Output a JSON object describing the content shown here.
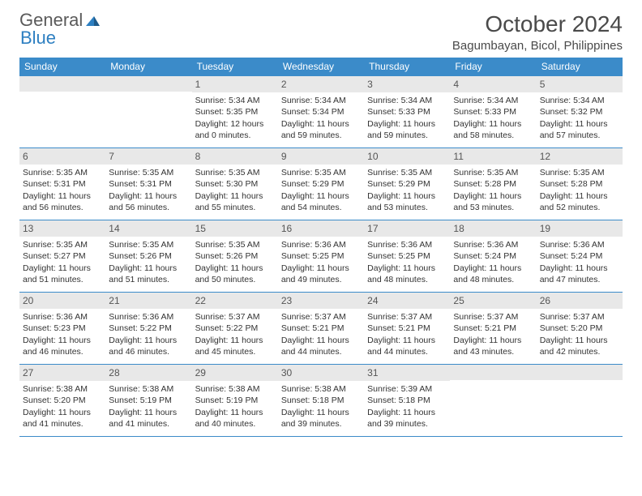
{
  "logo": {
    "text1": "General",
    "text2": "Blue"
  },
  "title": "October 2024",
  "location": "Bagumbayan, Bicol, Philippines",
  "colors": {
    "header_bar": "#3b8bc9",
    "daynum_bg": "#e8e8e8",
    "text": "#333333",
    "logo_gray": "#5a5a5a",
    "logo_blue": "#2d7fc1"
  },
  "weekdays": [
    "Sunday",
    "Monday",
    "Tuesday",
    "Wednesday",
    "Thursday",
    "Friday",
    "Saturday"
  ],
  "weeks": [
    [
      null,
      null,
      {
        "n": "1",
        "sunrise": "Sunrise: 5:34 AM",
        "sunset": "Sunset: 5:35 PM",
        "daylight": "Daylight: 12 hours and 0 minutes."
      },
      {
        "n": "2",
        "sunrise": "Sunrise: 5:34 AM",
        "sunset": "Sunset: 5:34 PM",
        "daylight": "Daylight: 11 hours and 59 minutes."
      },
      {
        "n": "3",
        "sunrise": "Sunrise: 5:34 AM",
        "sunset": "Sunset: 5:33 PM",
        "daylight": "Daylight: 11 hours and 59 minutes."
      },
      {
        "n": "4",
        "sunrise": "Sunrise: 5:34 AM",
        "sunset": "Sunset: 5:33 PM",
        "daylight": "Daylight: 11 hours and 58 minutes."
      },
      {
        "n": "5",
        "sunrise": "Sunrise: 5:34 AM",
        "sunset": "Sunset: 5:32 PM",
        "daylight": "Daylight: 11 hours and 57 minutes."
      }
    ],
    [
      {
        "n": "6",
        "sunrise": "Sunrise: 5:35 AM",
        "sunset": "Sunset: 5:31 PM",
        "daylight": "Daylight: 11 hours and 56 minutes."
      },
      {
        "n": "7",
        "sunrise": "Sunrise: 5:35 AM",
        "sunset": "Sunset: 5:31 PM",
        "daylight": "Daylight: 11 hours and 56 minutes."
      },
      {
        "n": "8",
        "sunrise": "Sunrise: 5:35 AM",
        "sunset": "Sunset: 5:30 PM",
        "daylight": "Daylight: 11 hours and 55 minutes."
      },
      {
        "n": "9",
        "sunrise": "Sunrise: 5:35 AM",
        "sunset": "Sunset: 5:29 PM",
        "daylight": "Daylight: 11 hours and 54 minutes."
      },
      {
        "n": "10",
        "sunrise": "Sunrise: 5:35 AM",
        "sunset": "Sunset: 5:29 PM",
        "daylight": "Daylight: 11 hours and 53 minutes."
      },
      {
        "n": "11",
        "sunrise": "Sunrise: 5:35 AM",
        "sunset": "Sunset: 5:28 PM",
        "daylight": "Daylight: 11 hours and 53 minutes."
      },
      {
        "n": "12",
        "sunrise": "Sunrise: 5:35 AM",
        "sunset": "Sunset: 5:28 PM",
        "daylight": "Daylight: 11 hours and 52 minutes."
      }
    ],
    [
      {
        "n": "13",
        "sunrise": "Sunrise: 5:35 AM",
        "sunset": "Sunset: 5:27 PM",
        "daylight": "Daylight: 11 hours and 51 minutes."
      },
      {
        "n": "14",
        "sunrise": "Sunrise: 5:35 AM",
        "sunset": "Sunset: 5:26 PM",
        "daylight": "Daylight: 11 hours and 51 minutes."
      },
      {
        "n": "15",
        "sunrise": "Sunrise: 5:35 AM",
        "sunset": "Sunset: 5:26 PM",
        "daylight": "Daylight: 11 hours and 50 minutes."
      },
      {
        "n": "16",
        "sunrise": "Sunrise: 5:36 AM",
        "sunset": "Sunset: 5:25 PM",
        "daylight": "Daylight: 11 hours and 49 minutes."
      },
      {
        "n": "17",
        "sunrise": "Sunrise: 5:36 AM",
        "sunset": "Sunset: 5:25 PM",
        "daylight": "Daylight: 11 hours and 48 minutes."
      },
      {
        "n": "18",
        "sunrise": "Sunrise: 5:36 AM",
        "sunset": "Sunset: 5:24 PM",
        "daylight": "Daylight: 11 hours and 48 minutes."
      },
      {
        "n": "19",
        "sunrise": "Sunrise: 5:36 AM",
        "sunset": "Sunset: 5:24 PM",
        "daylight": "Daylight: 11 hours and 47 minutes."
      }
    ],
    [
      {
        "n": "20",
        "sunrise": "Sunrise: 5:36 AM",
        "sunset": "Sunset: 5:23 PM",
        "daylight": "Daylight: 11 hours and 46 minutes."
      },
      {
        "n": "21",
        "sunrise": "Sunrise: 5:36 AM",
        "sunset": "Sunset: 5:22 PM",
        "daylight": "Daylight: 11 hours and 46 minutes."
      },
      {
        "n": "22",
        "sunrise": "Sunrise: 5:37 AM",
        "sunset": "Sunset: 5:22 PM",
        "daylight": "Daylight: 11 hours and 45 minutes."
      },
      {
        "n": "23",
        "sunrise": "Sunrise: 5:37 AM",
        "sunset": "Sunset: 5:21 PM",
        "daylight": "Daylight: 11 hours and 44 minutes."
      },
      {
        "n": "24",
        "sunrise": "Sunrise: 5:37 AM",
        "sunset": "Sunset: 5:21 PM",
        "daylight": "Daylight: 11 hours and 44 minutes."
      },
      {
        "n": "25",
        "sunrise": "Sunrise: 5:37 AM",
        "sunset": "Sunset: 5:21 PM",
        "daylight": "Daylight: 11 hours and 43 minutes."
      },
      {
        "n": "26",
        "sunrise": "Sunrise: 5:37 AM",
        "sunset": "Sunset: 5:20 PM",
        "daylight": "Daylight: 11 hours and 42 minutes."
      }
    ],
    [
      {
        "n": "27",
        "sunrise": "Sunrise: 5:38 AM",
        "sunset": "Sunset: 5:20 PM",
        "daylight": "Daylight: 11 hours and 41 minutes."
      },
      {
        "n": "28",
        "sunrise": "Sunrise: 5:38 AM",
        "sunset": "Sunset: 5:19 PM",
        "daylight": "Daylight: 11 hours and 41 minutes."
      },
      {
        "n": "29",
        "sunrise": "Sunrise: 5:38 AM",
        "sunset": "Sunset: 5:19 PM",
        "daylight": "Daylight: 11 hours and 40 minutes."
      },
      {
        "n": "30",
        "sunrise": "Sunrise: 5:38 AM",
        "sunset": "Sunset: 5:18 PM",
        "daylight": "Daylight: 11 hours and 39 minutes."
      },
      {
        "n": "31",
        "sunrise": "Sunrise: 5:39 AM",
        "sunset": "Sunset: 5:18 PM",
        "daylight": "Daylight: 11 hours and 39 minutes."
      },
      null,
      null
    ]
  ]
}
